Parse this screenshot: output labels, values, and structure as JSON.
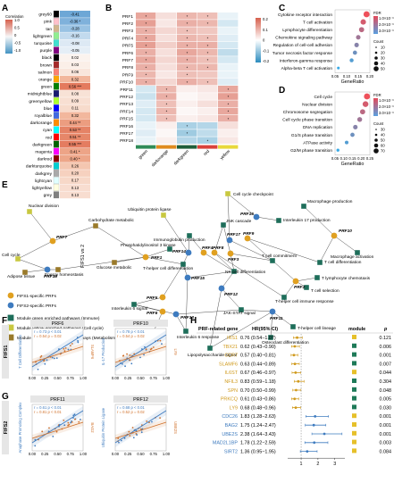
{
  "panels": {
    "A": "A",
    "B": "B",
    "C": "C",
    "D": "D",
    "E": "E",
    "F": "F",
    "G": "G",
    "H": "H"
  },
  "panel_a": {
    "legend_title": "Correlation",
    "legend_ticks": [
      "1.0",
      "0.5",
      "0",
      "-0.5",
      "-1.0"
    ],
    "xlabel": "FIFS1 vs 2",
    "modules": [
      {
        "name": "grey60",
        "value": "-0.41",
        "color": "#6da7d6"
      },
      {
        "name": "pink",
        "value": "-0.36 *",
        "color": "#7fb1db"
      },
      {
        "name": "tan",
        "value": "-0.28",
        "color": "#99c2e3"
      },
      {
        "name": "lightgreen",
        "value": "-0.16",
        "color": "#c2daee"
      },
      {
        "name": "turquoise",
        "value": "-0.08",
        "color": "#dde9f4"
      },
      {
        "name": "purple",
        "value": "-0.05",
        "color": "#e5eef6"
      },
      {
        "name": "black",
        "value": "0.02",
        "color": "#fbf3ee"
      },
      {
        "name": "brown",
        "value": "0.03",
        "color": "#fbefe8"
      },
      {
        "name": "salmon",
        "value": "0.06",
        "color": "#f9e6dc"
      },
      {
        "name": "orange",
        "value": "0.32",
        "color": "#f2b79d"
      },
      {
        "name": "green",
        "value": "0.56 ***",
        "color": "#e47a5e"
      },
      {
        "name": "midnightblue",
        "value": "0.08",
        "color": "#f8e2d6"
      },
      {
        "name": "greenyellow",
        "value": "0.09",
        "color": "#f8dfd2"
      },
      {
        "name": "blue",
        "value": "0.11",
        "color": "#f7dbcc"
      },
      {
        "name": "royalblue",
        "value": "0.32",
        "color": "#f2b79d"
      },
      {
        "name": "darkorange",
        "value": "0.44 **",
        "color": "#ec9d80"
      },
      {
        "name": "cyan",
        "value": "0.53 **",
        "color": "#e58366"
      },
      {
        "name": "red",
        "value": "0.51 **",
        "color": "#e68769"
      },
      {
        "name": "darkgreen",
        "value": "0.55 ***",
        "color": "#e47c60"
      },
      {
        "name": "magenta",
        "value": "0.41 *",
        "color": "#eda487"
      },
      {
        "name": "darkred",
        "value": "0.40 *",
        "color": "#eda689"
      },
      {
        "name": "darkturquoise",
        "value": "0.26",
        "color": "#f4c6b0"
      },
      {
        "name": "darkgrey",
        "value": "0.20",
        "color": "#f6d1bf"
      },
      {
        "name": "lightcyan",
        "value": "0.17",
        "color": "#f7d8c8"
      },
      {
        "name": "lightyellow",
        "value": "0.13",
        "color": "#f8ddd0"
      },
      {
        "name": "grey",
        "value": "0.13",
        "color": "#f8ddd0"
      }
    ]
  },
  "panel_b": {
    "rows": [
      "PRF1",
      "PRF2",
      "PRF3",
      "PRF4",
      "PRF5",
      "PRF6",
      "PRF7",
      "PRF8",
      "PRF9",
      "PRF10",
      "PRF11",
      "PRF12",
      "PRF13",
      "PRF14",
      "PRF15",
      "PRF16",
      "PRF17",
      "PRF18"
    ],
    "cols": [
      "green",
      "darkorange",
      "darkgreen",
      "red",
      "yellow"
    ],
    "legend_ticks": [
      "0.2",
      "0.1",
      "0",
      "-0.1",
      "-0.2"
    ],
    "cells": [
      [
        0.55,
        0.2,
        0.45,
        0.4,
        -0.1
      ],
      [
        0.6,
        0.15,
        0.5,
        0.45,
        -0.2
      ],
      [
        0.5,
        0.25,
        0.4,
        0.35,
        -0.1
      ],
      [
        0.55,
        0.2,
        0.45,
        0.4,
        -0.15
      ],
      [
        0.6,
        0.3,
        0.5,
        0.5,
        -0.2
      ],
      [
        0.5,
        0.2,
        0.55,
        0.45,
        -0.3
      ],
      [
        0.55,
        0.25,
        0.5,
        0.4,
        -0.2
      ],
      [
        0.5,
        0.2,
        0.45,
        0.45,
        -0.1
      ],
      [
        0.45,
        0.15,
        0.4,
        0.35,
        -0.1
      ],
      [
        0.5,
        0.25,
        0.5,
        0.4,
        -0.15
      ],
      [
        -0.2,
        0.45,
        0.1,
        0.15,
        0.55
      ],
      [
        -0.25,
        0.5,
        0.05,
        0.1,
        0.6
      ],
      [
        -0.15,
        0.4,
        0.1,
        0.2,
        0.5
      ],
      [
        -0.2,
        0.45,
        0.05,
        0.1,
        0.55
      ],
      [
        -0.2,
        0.4,
        0.1,
        0.15,
        0.5
      ],
      [
        -0.1,
        0.1,
        -0.4,
        -0.35,
        0.2
      ],
      [
        -0.15,
        0.05,
        -0.45,
        -0.3,
        0.1
      ],
      [
        -0.1,
        0.1,
        -0.35,
        -0.4,
        0.15
      ]
    ]
  },
  "panel_c": {
    "terms": [
      "Cytokine receptor interaction",
      "T cell activation",
      "Lymphocyte differentiation",
      "Chemokine signaling pathway",
      "Regulation of cell-cell adhesion",
      "Tumor necrosis factor response",
      "Interferon-gamma response",
      "Alpha-beta T cell activation"
    ],
    "generatio": [
      0.22,
      0.2,
      0.19,
      0.17,
      0.16,
      0.15,
      0.13,
      0.05
    ],
    "count": [
      70,
      60,
      55,
      45,
      45,
      40,
      35,
      15
    ],
    "xlabel": "GeneRatio",
    "xticks": [
      "0.05",
      "0.10",
      "0.15",
      "0.20"
    ],
    "fdr_label": "FDR",
    "fdr_ticks": [
      "1.0×10⁻³",
      "2.0×10⁻³",
      "3.0×10⁻³"
    ],
    "count_label": "Count",
    "count_ticks": [
      "10",
      "20",
      "30",
      "40",
      "50"
    ]
  },
  "panel_d": {
    "terms": [
      "Cell cycle",
      "Nuclear division",
      "Chromosome segregation",
      "Cell cycle phase transition",
      "DNA replication",
      "G1/S phase transition",
      "ATPase activity",
      "G2/M phase transition"
    ],
    "generatio": [
      0.26,
      0.25,
      0.23,
      0.21,
      0.18,
      0.16,
      0.12,
      0.06
    ],
    "count": [
      70,
      65,
      55,
      50,
      45,
      40,
      30,
      20
    ],
    "xlabel": "GeneRatio",
    "xticks": [
      "0.05",
      "0.10",
      "0.15",
      "0.20",
      "0.25"
    ],
    "fdr_label": "FDR",
    "fdr_ticks": [
      "1.0×10⁻³",
      "2.0×10⁻³",
      "3.0×10⁻³"
    ],
    "count_label": "Count",
    "count_ticks": [
      "30",
      "40",
      "50",
      "60",
      "70"
    ]
  },
  "panel_e": {
    "labels": {
      "cell_cycle_checkpoint": "Cell cycle checkpoint",
      "macrophage_production": "Macrophage production",
      "interleukin17": "Interleukin 17 production",
      "nuclear_division": "Nuclear division",
      "ubiquitin": "Ubiquitin protein ligase",
      "jnk": "JNK cascade",
      "carb_met": "Carbohydrate metabolic",
      "immunoglobulin": "Immunoglobulin production",
      "macrophage_activation": "Macrophage activation",
      "cell_cycle": "Cell cycle",
      "adipose": "Adipose tissue",
      "energy": "Energy homeostasis",
      "glucose": "Glucose metabolic",
      "pi3k": "Phosphatidylinositol 3 kinase",
      "th_diff": "T-helper cell differentiation",
      "tcell_comm": "T cell commitment",
      "tcell_diff": "T cell differentiation",
      "tcell_chemo": "T lymphocyte chemotaxis",
      "nk_diff": "NK cell differentiation",
      "tcell_sel": "T cell selection",
      "th_immune": "T-helper cell immune response",
      "il6": "Interleukin 6 signal",
      "jak": "JAK-STAT signal",
      "insulin": "Insulin receptor",
      "il6_resp": "Interleukin 6 response",
      "th_lineage": "T-helper cell lineage",
      "osteoclast": "Osteoclast differentiation",
      "lps": "Lipopolysaccharide signal"
    },
    "prfs": [
      "PRF1",
      "PRF2",
      "PRF3",
      "PRF4",
      "PRF5",
      "PRF6",
      "PRF7",
      "PRF8",
      "PRF9",
      "PRF10",
      "PRF11",
      "PRF12",
      "PRF13",
      "PRF14",
      "PRF15",
      "PRF16",
      "PRF17",
      "PRF18"
    ],
    "legend": [
      {
        "label": "FIFS1-specific PRFs",
        "color": "#e0a020"
      },
      {
        "label": "FIFS2-specific PRFs",
        "color": "#3e7bbf"
      },
      {
        "label": "Module green enriched pathways (Immune)",
        "color": "#1e6e5a"
      },
      {
        "label": "Module yellow enriched pathways (Cell cycle)",
        "color": "#c8c840"
      },
      {
        "label": "Module darkorange enriched pathways (Metabolism)",
        "color": "#9a7a2a"
      }
    ]
  },
  "panel_f": {
    "side_label": "FIFS1",
    "plots": [
      {
        "title": "PRF6",
        "stats_blue": "r = 0.73",
        "p_blue": "p < 0.01",
        "stats_red": "r = 0.54",
        "p_red": "p = 0.02",
        "ylabel_left": "T Cell Differentiation",
        "ylabel_right": "SLAMF6"
      },
      {
        "title": "PRF10",
        "stats_blue": "r = 0.78",
        "p_blue": "p < 0.01",
        "stats_red": "r = 0.54",
        "p_red": "p = 0.02",
        "ylabel_left": "IL-17 Production",
        "ylabel_right": "LY9"
      }
    ],
    "xticks": [
      "0.00",
      "0.25",
      "0.50",
      "0.75",
      "1.00"
    ]
  },
  "panel_g": {
    "side_label": "FIFS2",
    "plots": [
      {
        "title": "PRF11",
        "stats_blue": "r = 0.61",
        "p_blue": "p < 0.01",
        "stats_red": "r = 0.81",
        "p_red": "p < 0.01",
        "ylabel_left": "Anaphase Promoting Complex",
        "ylabel_right": "BAG2"
      },
      {
        "title": "PRF12",
        "stats_blue": "r = 0.68",
        "p_blue": "p < 0.01",
        "stats_red": "r = 0.52",
        "p_red": "p = 0.02",
        "ylabel_left": "Ubiquitin Protein Ligase",
        "ylabel_right": "UBE2S"
      }
    ],
    "xticks": [
      "0.00",
      "0.25",
      "0.50",
      "0.75",
      "1.00"
    ]
  },
  "panel_h": {
    "headers": {
      "gene": "PRF-related gene",
      "hr": "HR(95% CI)",
      "module": "module",
      "p": "p"
    },
    "rows": [
      {
        "gene": "IRS1",
        "hr": "0.76 (0.54−1.07)",
        "hr_val": 0.76,
        "lo": 0.54,
        "hi": 1.07,
        "p": "0.121",
        "color": "#d09a1c",
        "module": "#e6c02a"
      },
      {
        "gene": "TBX21",
        "hr": "0.62 (0.43−0.90)",
        "hr_val": 0.62,
        "lo": 0.43,
        "hi": 0.9,
        "p": "0.006",
        "color": "#d09a1c",
        "module": "#1e7a58"
      },
      {
        "gene": "CCR7",
        "hr": "0.57 (0.40−0.81)",
        "hr_val": 0.57,
        "lo": 0.4,
        "hi": 0.81,
        "p": "0.001",
        "color": "#d09a1c",
        "module": "#1e7a58"
      },
      {
        "gene": "SLAMF6",
        "hr": "0.63 (0.44−0.89)",
        "hr_val": 0.63,
        "lo": 0.44,
        "hi": 0.89,
        "p": "0.007",
        "color": "#d09a1c",
        "module": "#1e7a58"
      },
      {
        "gene": "IL6ST",
        "hr": "0.67 (0.46−0.97)",
        "hr_val": 0.67,
        "lo": 0.46,
        "hi": 0.97,
        "p": "0.044",
        "color": "#d09a1c",
        "module": "#e6c02a"
      },
      {
        "gene": "NFIL3",
        "hr": "0.83 (0.59−1.18)",
        "hr_val": 0.83,
        "lo": 0.59,
        "hi": 1.18,
        "p": "0.304",
        "color": "#d09a1c",
        "module": "#1e7a58"
      },
      {
        "gene": "SPN",
        "hr": "0.70 (0.50−0.99)",
        "hr_val": 0.7,
        "lo": 0.5,
        "hi": 0.99,
        "p": "0.048",
        "color": "#d09a1c",
        "module": "#1e7a58"
      },
      {
        "gene": "PRKCQ",
        "hr": "0.61 (0.43−0.86)",
        "hr_val": 0.61,
        "lo": 0.43,
        "hi": 0.86,
        "p": "0.005",
        "color": "#d09a1c",
        "module": "#1e7a58"
      },
      {
        "gene": "LY9",
        "hr": "0.68 (0.48−0.96)",
        "hr_val": 0.68,
        "lo": 0.48,
        "hi": 0.96,
        "p": "0.030",
        "color": "#d09a1c",
        "module": "#1e7a58"
      },
      {
        "gene": "CDC26",
        "hr": "1.83 (1.28−2.63)",
        "hr_val": 1.83,
        "lo": 1.28,
        "hi": 2.63,
        "p": "0.001",
        "color": "#3e7bbf",
        "module": "#e6c02a"
      },
      {
        "gene": "BAG2",
        "hr": "1.75 (1.24−2.47)",
        "hr_val": 1.75,
        "lo": 1.24,
        "hi": 2.47,
        "p": "0.001",
        "color": "#3e7bbf",
        "module": "#e6c02a"
      },
      {
        "gene": "UBE2S",
        "hr": "2.38 (1.64−3.43)",
        "hr_val": 2.38,
        "lo": 1.64,
        "hi": 3.43,
        "p": "0.001",
        "color": "#3e7bbf",
        "module": "#e6c02a"
      },
      {
        "gene": "MAD2L1BP",
        "hr": "1.78 (1.22−2.59)",
        "hr_val": 1.78,
        "lo": 1.22,
        "hi": 2.59,
        "p": "0.003",
        "color": "#3e7bbf",
        "module": "#e6c02a"
      },
      {
        "gene": "SIRT2",
        "hr": "1.36 (0.95−1.95)",
        "hr_val": 1.36,
        "lo": 0.95,
        "hi": 1.95,
        "p": "0.084",
        "color": "#3e7bbf",
        "module": "#e6c02a"
      }
    ],
    "xticks": [
      "1",
      "2",
      "3"
    ]
  }
}
